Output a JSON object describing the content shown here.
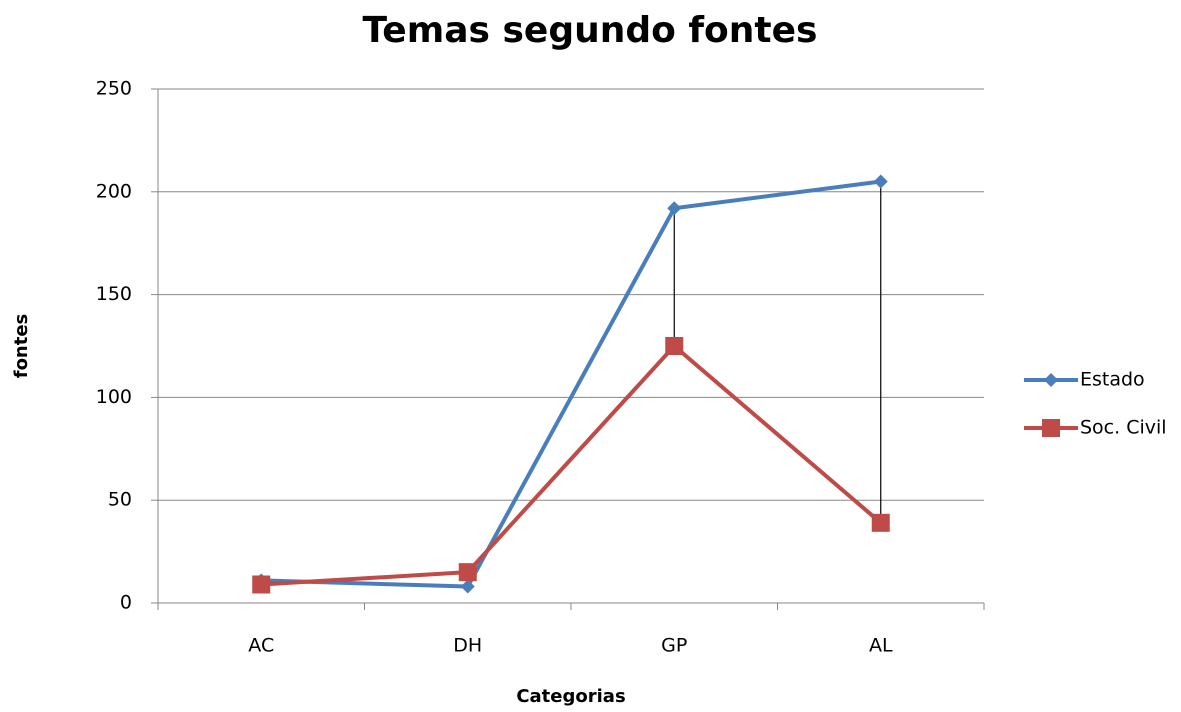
{
  "chart_data": {
    "type": "line",
    "title": "Temas segundo fontes",
    "x_label": "Categorias",
    "y_label": "fontes",
    "categories": [
      "AC",
      "DH",
      "GP",
      "AL"
    ],
    "series": [
      {
        "name": "Estado",
        "color": "#4a7ebb",
        "marker": "diamond",
        "values": [
          11,
          8,
          192,
          205
        ]
      },
      {
        "name": "Soc. Civil",
        "color": "#be4b48",
        "marker": "square",
        "values": [
          9,
          15,
          125,
          39
        ]
      }
    ],
    "ylim": [
      0,
      250
    ],
    "yticks": [
      0,
      50,
      100,
      150,
      200,
      250
    ],
    "grid": true,
    "hi_lo_lines": true,
    "legend": "right"
  }
}
